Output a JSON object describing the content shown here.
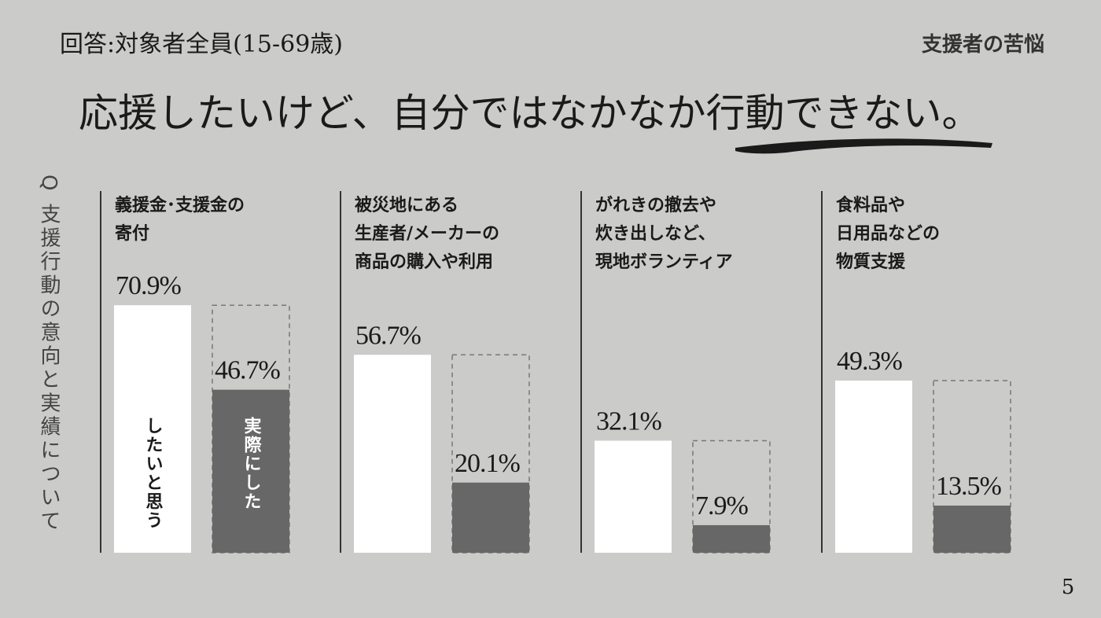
{
  "header": "回答:対象者全員(15-69歳)",
  "section": "支援者の苦悩",
  "headline": "応援したいけど、自分ではなかなか行動できない。",
  "question": "Q 支援行動の意向と実績について",
  "page_number": "5",
  "bar_labels": [
    "したいと思う",
    "実際にした"
  ],
  "chart_data": [
    {
      "type": "bar",
      "title": [
        "義援金･支援金の",
        "寄付"
      ],
      "values": [
        70.9,
        46.7
      ],
      "value_labels": [
        "70.9%",
        "46.7%"
      ],
      "colors": [
        "#ffffff",
        "#666766"
      ]
    },
    {
      "type": "bar",
      "title": [
        "被災地にある",
        "生産者/メーカーの",
        "商品の購入や利用"
      ],
      "values": [
        56.7,
        20.1
      ],
      "value_labels": [
        "56.7%",
        "20.1%"
      ],
      "colors": [
        "#ffffff",
        "#666766"
      ]
    },
    {
      "type": "bar",
      "title": [
        "がれきの撤去や",
        "炊き出しなど、",
        "現地ボランティア"
      ],
      "values": [
        32.1,
        7.9
      ],
      "value_labels": [
        "32.1%",
        "7.9%"
      ],
      "colors": [
        "#ffffff",
        "#666766"
      ]
    },
    {
      "type": "bar",
      "title": [
        "食料品や",
        "日用品などの",
        "物質支援"
      ],
      "values": [
        49.3,
        13.5
      ],
      "value_labels": [
        "49.3%",
        "13.5%"
      ],
      "colors": [
        "#ffffff",
        "#666766"
      ]
    }
  ]
}
